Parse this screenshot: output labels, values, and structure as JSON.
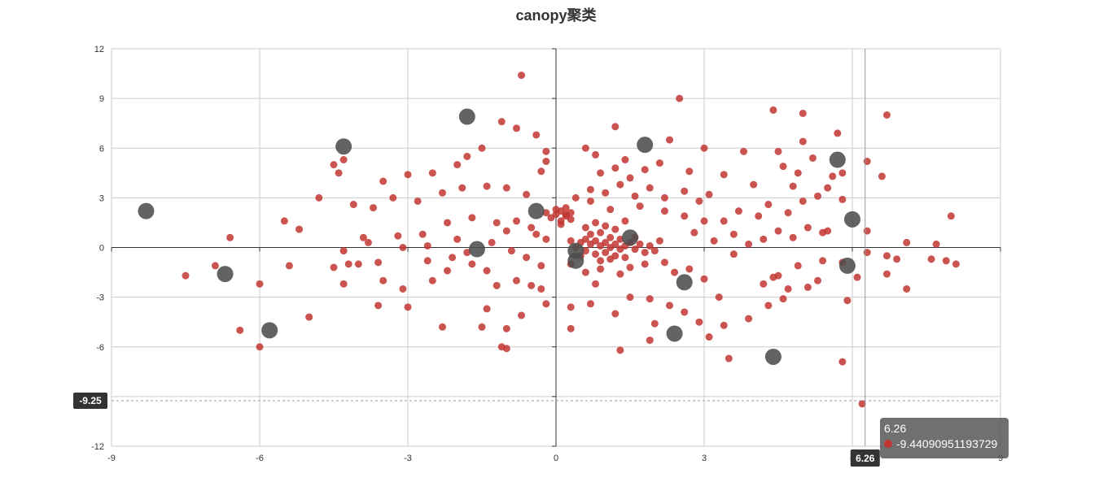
{
  "chart_data": {
    "type": "scatter",
    "title": "canopy聚类",
    "xlabel": "",
    "ylabel": "",
    "xlim": [
      -9,
      9
    ],
    "ylim": [
      -12,
      12
    ],
    "xticks": [
      -9,
      -6,
      -3,
      0,
      3,
      6,
      9
    ],
    "yticks": [
      -12,
      -9,
      -6,
      -3,
      0,
      3,
      6,
      9,
      12
    ],
    "grid": true,
    "legend": "none",
    "colors": {
      "points": "#c23531",
      "centers": "#4d4d4d",
      "axis": "#333333",
      "grid": "#cccccc"
    },
    "series": [
      {
        "name": "",
        "role": "points",
        "points": [
          [
            -0.7,
            10.4
          ],
          [
            -1.1,
            7.6
          ],
          [
            -0.8,
            7.2
          ],
          [
            -0.4,
            6.8
          ],
          [
            -1.5,
            6.0
          ],
          [
            -1.8,
            5.5
          ],
          [
            -2.0,
            5.0
          ],
          [
            -2.5,
            4.5
          ],
          [
            -3.0,
            4.4
          ],
          [
            -3.5,
            4.0
          ],
          [
            -4.3,
            5.3
          ],
          [
            -4.5,
            5.0
          ],
          [
            -4.4,
            4.5
          ],
          [
            -4.8,
            3.0
          ],
          [
            -4.1,
            2.6
          ],
          [
            -3.7,
            2.4
          ],
          [
            -3.3,
            3.0
          ],
          [
            -2.8,
            2.8
          ],
          [
            -2.3,
            3.3
          ],
          [
            -1.9,
            3.6
          ],
          [
            -1.4,
            3.7
          ],
          [
            -1.0,
            3.6
          ],
          [
            -0.6,
            3.2
          ],
          [
            -0.3,
            4.6
          ],
          [
            -0.2,
            5.2
          ],
          [
            -0.2,
            5.8
          ],
          [
            -3.2,
            0.7
          ],
          [
            -2.7,
            0.8
          ],
          [
            -2.2,
            1.5
          ],
          [
            -1.7,
            1.8
          ],
          [
            -1.2,
            1.5
          ],
          [
            -0.8,
            1.6
          ],
          [
            -0.5,
            1.2
          ],
          [
            -2.0,
            0.5
          ],
          [
            -2.6,
            0.1
          ],
          [
            -3.1,
            0.0
          ],
          [
            -3.8,
            0.3
          ],
          [
            -4.3,
            -0.2
          ],
          [
            -4.5,
            -1.2
          ],
          [
            -4.2,
            -1.0
          ],
          [
            -4.3,
            -2.2
          ],
          [
            -3.6,
            -0.9
          ],
          [
            -3.5,
            -2.0
          ],
          [
            -3.1,
            -2.5
          ],
          [
            -3.0,
            -3.6
          ],
          [
            -3.6,
            -3.5
          ],
          [
            -2.5,
            -2.0
          ],
          [
            -2.2,
            -1.4
          ],
          [
            -1.7,
            -1.0
          ],
          [
            -1.4,
            -1.4
          ],
          [
            -1.2,
            -2.3
          ],
          [
            -0.8,
            -2.0
          ],
          [
            -0.5,
            -2.3
          ],
          [
            -0.3,
            -2.5
          ],
          [
            -0.2,
            -3.4
          ],
          [
            -0.7,
            -4.1
          ],
          [
            -1.0,
            -4.9
          ],
          [
            -1.5,
            -4.8
          ],
          [
            -1.4,
            -3.7
          ],
          [
            -2.3,
            -4.8
          ],
          [
            -1.1,
            -6.0
          ],
          [
            -1.0,
            -6.1
          ],
          [
            -0.3,
            -1.1
          ],
          [
            -0.6,
            -0.6
          ],
          [
            -0.9,
            -0.2
          ],
          [
            -1.3,
            0.3
          ],
          [
            -0.2,
            0.5
          ],
          [
            -5.0,
            -4.2
          ],
          [
            -5.5,
            1.6
          ],
          [
            -5.2,
            1.1
          ],
          [
            -6.6,
            0.6
          ],
          [
            -6.9,
            -1.1
          ],
          [
            -7.5,
            -1.7
          ],
          [
            -6.0,
            -2.2
          ],
          [
            -6.4,
            -5.0
          ],
          [
            -6.0,
            -6.0
          ],
          [
            -5.4,
            -1.1
          ],
          [
            -4.0,
            -1.0
          ],
          [
            -3.9,
            0.6
          ],
          [
            -2.1,
            -0.6
          ],
          [
            -2.6,
            -0.8
          ],
          [
            -1.8,
            -0.3
          ],
          [
            -1.0,
            1.0
          ],
          [
            -0.4,
            0.8
          ],
          [
            0.0,
            2.0
          ],
          [
            0.1,
            2.2
          ],
          [
            0.2,
            1.9
          ],
          [
            0.3,
            2.1
          ],
          [
            -0.1,
            1.8
          ],
          [
            0.2,
            2.4
          ],
          [
            0.1,
            1.6
          ],
          [
            0.3,
            1.7
          ],
          [
            0.0,
            2.3
          ],
          [
            0.2,
            2.0
          ],
          [
            -0.2,
            2.1
          ],
          [
            0.1,
            1.4
          ],
          [
            0.5,
            0.3
          ],
          [
            0.6,
            0.5
          ],
          [
            0.7,
            0.2
          ],
          [
            0.8,
            0.4
          ],
          [
            0.9,
            0.1
          ],
          [
            1.0,
            0.3
          ],
          [
            1.1,
            0.0
          ],
          [
            1.2,
            0.2
          ],
          [
            1.3,
            -0.1
          ],
          [
            1.4,
            0.1
          ],
          [
            0.6,
            -0.2
          ],
          [
            0.8,
            -0.4
          ],
          [
            1.0,
            -0.3
          ],
          [
            1.2,
            -0.5
          ],
          [
            0.7,
            0.8
          ],
          [
            0.9,
            0.9
          ],
          [
            1.1,
            0.6
          ],
          [
            1.3,
            0.5
          ],
          [
            1.5,
            0.3
          ],
          [
            1.6,
            -0.1
          ],
          [
            1.7,
            0.2
          ],
          [
            1.8,
            -0.3
          ],
          [
            0.4,
            0.0
          ],
          [
            0.3,
            0.4
          ],
          [
            0.5,
            -0.5
          ],
          [
            0.9,
            -0.8
          ],
          [
            1.1,
            -0.7
          ],
          [
            1.4,
            -0.6
          ],
          [
            1.6,
            0.6
          ],
          [
            1.9,
            0.1
          ],
          [
            2.0,
            -0.2
          ],
          [
            2.1,
            0.4
          ],
          [
            0.6,
            1.2
          ],
          [
            0.8,
            1.5
          ],
          [
            1.0,
            1.3
          ],
          [
            1.2,
            1.1
          ],
          [
            1.4,
            1.6
          ],
          [
            0.3,
            -1.0
          ],
          [
            0.6,
            -1.5
          ],
          [
            0.9,
            -1.3
          ],
          [
            1.3,
            -1.6
          ],
          [
            1.5,
            -1.2
          ],
          [
            1.8,
            -1.0
          ],
          [
            2.2,
            -0.9
          ],
          [
            2.4,
            -1.5
          ],
          [
            0.4,
            3.0
          ],
          [
            0.7,
            3.5
          ],
          [
            1.0,
            3.3
          ],
          [
            1.3,
            3.8
          ],
          [
            1.6,
            3.1
          ],
          [
            1.9,
            3.6
          ],
          [
            2.2,
            3.0
          ],
          [
            0.9,
            4.5
          ],
          [
            1.2,
            4.8
          ],
          [
            1.5,
            4.2
          ],
          [
            1.8,
            4.7
          ],
          [
            2.1,
            5.1
          ],
          [
            2.3,
            6.5
          ],
          [
            1.2,
            7.3
          ],
          [
            0.6,
            6.0
          ],
          [
            0.8,
            5.6
          ],
          [
            1.4,
            5.3
          ],
          [
            2.6,
            3.4
          ],
          [
            2.9,
            2.8
          ],
          [
            3.1,
            3.2
          ],
          [
            3.4,
            1.6
          ],
          [
            3.7,
            2.2
          ],
          [
            4.1,
            1.9
          ],
          [
            4.3,
            2.6
          ],
          [
            4.7,
            2.1
          ],
          [
            5.0,
            2.8
          ],
          [
            5.3,
            3.1
          ],
          [
            3.2,
            0.4
          ],
          [
            3.6,
            0.8
          ],
          [
            3.9,
            0.2
          ],
          [
            4.2,
            0.5
          ],
          [
            4.5,
            1.0
          ],
          [
            4.8,
            0.6
          ],
          [
            5.1,
            1.2
          ],
          [
            5.4,
            0.9
          ],
          [
            2.5,
            9.0
          ],
          [
            3.0,
            6.0
          ],
          [
            4.4,
            8.3
          ],
          [
            5.0,
            8.1
          ],
          [
            5.7,
            6.9
          ],
          [
            6.7,
            8.0
          ],
          [
            5.0,
            6.4
          ],
          [
            6.6,
            4.3
          ],
          [
            6.3,
            5.2
          ],
          [
            5.6,
            4.3
          ],
          [
            4.8,
            3.7
          ],
          [
            4.0,
            3.8
          ],
          [
            3.4,
            4.4
          ],
          [
            2.7,
            4.6
          ],
          [
            3.8,
            5.8
          ],
          [
            4.5,
            5.8
          ],
          [
            5.8,
            2.9
          ],
          [
            6.3,
            1.0
          ],
          [
            7.1,
            0.3
          ],
          [
            7.7,
            0.2
          ],
          [
            7.9,
            -0.8
          ],
          [
            8.1,
            -1.0
          ],
          [
            7.6,
            -0.7
          ],
          [
            6.9,
            -0.7
          ],
          [
            6.7,
            -1.6
          ],
          [
            7.1,
            -2.5
          ],
          [
            6.1,
            -1.8
          ],
          [
            5.8,
            -0.9
          ],
          [
            5.4,
            -0.8
          ],
          [
            4.9,
            -1.1
          ],
          [
            4.5,
            -1.7
          ],
          [
            4.2,
            -2.2
          ],
          [
            4.4,
            -1.8
          ],
          [
            4.7,
            -2.5
          ],
          [
            4.6,
            -3.1
          ],
          [
            5.9,
            -3.2
          ],
          [
            5.8,
            -6.9
          ],
          [
            4.3,
            -3.5
          ],
          [
            3.9,
            -4.3
          ],
          [
            3.4,
            -4.7
          ],
          [
            3.5,
            -6.7
          ],
          [
            3.1,
            -5.4
          ],
          [
            2.9,
            -4.5
          ],
          [
            2.6,
            -3.9
          ],
          [
            2.3,
            -3.5
          ],
          [
            2.0,
            -4.6
          ],
          [
            1.9,
            -5.6
          ],
          [
            1.3,
            -6.2
          ],
          [
            1.2,
            -4.0
          ],
          [
            1.5,
            -3.0
          ],
          [
            1.9,
            -3.1
          ],
          [
            0.7,
            -3.4
          ],
          [
            0.3,
            -3.6
          ],
          [
            0.3,
            -4.9
          ],
          [
            0.8,
            -2.2
          ],
          [
            2.7,
            -1.3
          ],
          [
            3.0,
            -1.9
          ],
          [
            3.3,
            -3.0
          ],
          [
            3.6,
            -0.4
          ],
          [
            2.8,
            0.9
          ],
          [
            3.0,
            1.6
          ],
          [
            2.6,
            1.9
          ],
          [
            2.2,
            2.2
          ],
          [
            1.7,
            2.5
          ],
          [
            1.1,
            2.3
          ],
          [
            0.7,
            2.8
          ],
          [
            4.9,
            4.5
          ],
          [
            5.5,
            3.6
          ],
          [
            5.8,
            4.5
          ],
          [
            5.2,
            5.4
          ],
          [
            4.6,
            4.9
          ],
          [
            8.0,
            1.9
          ],
          [
            6.7,
            -0.5
          ],
          [
            5.5,
            1.0
          ],
          [
            6.3,
            -0.3
          ],
          [
            5.3,
            -2.0
          ],
          [
            5.1,
            -2.4
          ],
          [
            6.2,
            -9.44
          ]
        ]
      },
      {
        "name": "",
        "role": "centers",
        "points": [
          [
            -1.8,
            7.9
          ],
          [
            -4.3,
            6.1
          ],
          [
            1.8,
            6.2
          ],
          [
            -8.3,
            2.2
          ],
          [
            -6.7,
            -1.6
          ],
          [
            -5.8,
            -5.0
          ],
          [
            -1.6,
            -0.1
          ],
          [
            -0.4,
            2.2
          ],
          [
            0.4,
            -0.2
          ],
          [
            0.4,
            -0.8
          ],
          [
            1.5,
            0.6
          ],
          [
            2.6,
            -2.1
          ],
          [
            2.4,
            -5.2
          ],
          [
            4.4,
            -6.6
          ],
          [
            5.7,
            5.3
          ],
          [
            6.0,
            1.7
          ],
          [
            5.9,
            -1.1
          ]
        ]
      }
    ],
    "axis_pointer": {
      "x": 6.26,
      "y": -9.25,
      "x_label": "6.26",
      "y_label": "-9.25"
    },
    "tooltip": {
      "header": "6.26",
      "value": "-9.44090951193729"
    }
  }
}
